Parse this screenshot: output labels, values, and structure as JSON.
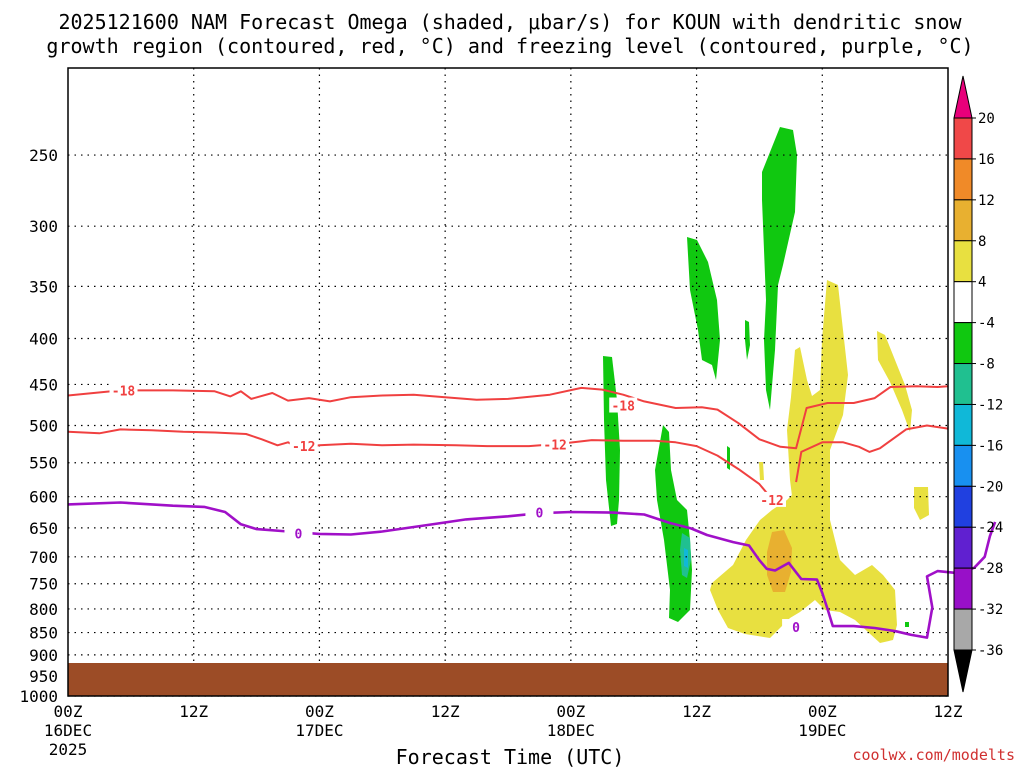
{
  "chart_data": {
    "type": "heatmap",
    "title_line1": "2025121600 NAM Forecast Omega (shaded, μbar/s) for KOUN with dendritic snow",
    "title_line2": "growth region (contoured, red, °C) and freezing level (contoured, purple, °C)",
    "xlabel": "Forecast Time (UTC)",
    "credit": "coolwx.com/modelts",
    "x_range_hours": [
      0,
      84
    ],
    "y_range_hpa": [
      200,
      1000
    ],
    "y_scale": "log-pressure",
    "grid": true,
    "x_ticks": [
      {
        "h": 0,
        "label": "00Z",
        "sub": "16DEC",
        "sub2": "2025"
      },
      {
        "h": 12,
        "label": "12Z",
        "sub": "",
        "sub2": ""
      },
      {
        "h": 24,
        "label": "00Z",
        "sub": "17DEC",
        "sub2": ""
      },
      {
        "h": 36,
        "label": "12Z",
        "sub": "",
        "sub2": ""
      },
      {
        "h": 48,
        "label": "00Z",
        "sub": "18DEC",
        "sub2": ""
      },
      {
        "h": 60,
        "label": "12Z",
        "sub": "",
        "sub2": ""
      },
      {
        "h": 72,
        "label": "00Z",
        "sub": "19DEC",
        "sub2": ""
      },
      {
        "h": 84,
        "label": "12Z",
        "sub": "",
        "sub2": ""
      }
    ],
    "y_ticks": [
      250,
      300,
      350,
      400,
      450,
      500,
      550,
      600,
      650,
      700,
      750,
      800,
      850,
      900,
      950,
      1000
    ],
    "colorbar": {
      "levels": [
        "20",
        "16",
        "12",
        "8",
        "4",
        "-4",
        "-8",
        "-12",
        "-16",
        "-20",
        "-24",
        "-28",
        "-32",
        "-36"
      ],
      "colors": [
        "#e8007a",
        "#f04848",
        "#f08a28",
        "#e8b030",
        "#e8e040",
        "#ffffff",
        "#10c810",
        "#20c090",
        "#10b8d8",
        "#1890f0",
        "#2040e0",
        "#6020d0",
        "#9810c8",
        "#a8a8a8",
        "#000000"
      ]
    },
    "isotherm_labels": {
      "m18": "-18",
      "m12": "-12",
      "zero": "0"
    },
    "contours": {
      "minus18": [
        [
          0,
          463
        ],
        [
          5,
          457
        ],
        [
          10,
          457
        ],
        [
          14,
          458
        ],
        [
          15.5,
          464
        ],
        [
          16.5,
          458
        ],
        [
          17.5,
          467
        ],
        [
          19.5,
          460
        ],
        [
          21,
          469
        ],
        [
          23,
          466
        ],
        [
          25,
          470
        ],
        [
          27,
          465
        ],
        [
          30,
          463
        ],
        [
          33,
          462
        ],
        [
          36,
          465
        ],
        [
          39,
          468
        ],
        [
          42,
          467
        ],
        [
          46,
          462
        ],
        [
          49,
          454
        ],
        [
          51,
          456
        ],
        [
          53,
          462
        ],
        [
          55,
          470
        ],
        [
          58,
          478
        ],
        [
          60.5,
          477
        ],
        [
          62,
          480
        ],
        [
          64,
          497
        ],
        [
          66,
          518
        ],
        [
          68,
          528
        ],
        [
          69.5,
          530
        ],
        [
          70.5,
          478
        ],
        [
          72.5,
          472
        ],
        [
          75,
          472
        ],
        [
          77,
          466
        ],
        [
          78.5,
          453
        ],
        [
          81,
          452
        ],
        [
          83,
          453
        ],
        [
          84,
          452
        ]
      ],
      "minus12a": [
        [
          0,
          508
        ],
        [
          3,
          510
        ],
        [
          5,
          505
        ],
        [
          8,
          506
        ],
        [
          11,
          508
        ],
        [
          14,
          509
        ],
        [
          17,
          511
        ],
        [
          18.5,
          518
        ],
        [
          20,
          526
        ],
        [
          21,
          522
        ],
        [
          22,
          530
        ],
        [
          24,
          526
        ],
        [
          27,
          524
        ],
        [
          30,
          526
        ],
        [
          33,
          525
        ],
        [
          37,
          526
        ],
        [
          40,
          527
        ],
        [
          44,
          527
        ],
        [
          47,
          524
        ],
        [
          50,
          519
        ],
        [
          53,
          520
        ],
        [
          56,
          520
        ],
        [
          58,
          522
        ],
        [
          60,
          527
        ],
        [
          62,
          540
        ],
        [
          64,
          559
        ],
        [
          66,
          581
        ],
        [
          67,
          600
        ],
        [
          68,
          611
        ]
      ],
      "minus12b": [
        [
          69.5,
          578
        ],
        [
          70,
          535
        ],
        [
          72,
          522
        ],
        [
          74,
          522
        ],
        [
          75.5,
          528
        ],
        [
          76.5,
          535
        ],
        [
          77.5,
          530
        ],
        [
          80,
          505
        ],
        [
          82,
          500
        ],
        [
          84,
          504
        ]
      ],
      "zero": [
        [
          0,
          612
        ],
        [
          5,
          609
        ],
        [
          10,
          614
        ],
        [
          13,
          616
        ],
        [
          15,
          624
        ],
        [
          16.5,
          644
        ],
        [
          18,
          652
        ],
        [
          21,
          656
        ],
        [
          24,
          660
        ],
        [
          27,
          661
        ],
        [
          30,
          656
        ],
        [
          34,
          646
        ],
        [
          38,
          636
        ],
        [
          42,
          631
        ],
        [
          45,
          626
        ],
        [
          48,
          624
        ],
        [
          52,
          625
        ],
        [
          55,
          628
        ],
        [
          57.5,
          642
        ],
        [
          59.5,
          651
        ],
        [
          61,
          662
        ],
        [
          63.5,
          674
        ],
        [
          65,
          680
        ],
        [
          66,
          706
        ],
        [
          66.7,
          722
        ],
        [
          67.5,
          725
        ],
        [
          68.8,
          711
        ],
        [
          70,
          741
        ],
        [
          71.5,
          742
        ],
        [
          72,
          768
        ],
        [
          72.5,
          800
        ],
        [
          73,
          836
        ],
        [
          75,
          836
        ],
        [
          77,
          840
        ],
        [
          79,
          847
        ],
        [
          80.5,
          855
        ],
        [
          82,
          861
        ],
        [
          82.5,
          797
        ],
        [
          82,
          736
        ],
        [
          83,
          726
        ],
        [
          85,
          730
        ],
        [
          86.5,
          720
        ],
        [
          87.5,
          700
        ],
        [
          88,
          664
        ],
        [
          88.5,
          640
        ]
      ]
    }
  }
}
